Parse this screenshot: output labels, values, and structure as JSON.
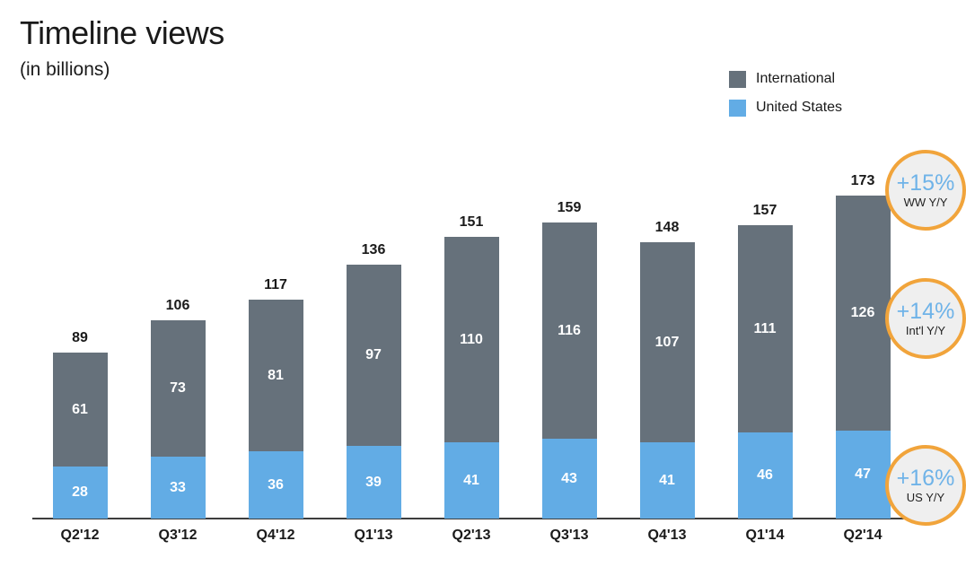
{
  "chart_data": {
    "type": "bar",
    "stacked": true,
    "title": "Timeline views",
    "subtitle": "(in billions)",
    "categories": [
      "Q2'12",
      "Q3'12",
      "Q4'12",
      "Q1'13",
      "Q2'13",
      "Q3'13",
      "Q4'13",
      "Q1'14",
      "Q2'14"
    ],
    "series": [
      {
        "name": "International",
        "color": "#66717b",
        "values": [
          61,
          73,
          81,
          97,
          110,
          116,
          107,
          111,
          126
        ]
      },
      {
        "name": "United States",
        "color": "#62ace5",
        "values": [
          28,
          33,
          36,
          39,
          41,
          43,
          41,
          46,
          47
        ]
      }
    ],
    "totals": [
      89,
      106,
      117,
      136,
      151,
      159,
      148,
      157,
      173
    ],
    "ylim": [
      0,
      173
    ],
    "grid": false,
    "legend_position": "top-right",
    "annotations": [
      {
        "value": "+15%",
        "label": "WW Y/Y"
      },
      {
        "value": "+14%",
        "label": "Int'l Y/Y"
      },
      {
        "value": "+16%",
        "label": "US Y/Y"
      }
    ]
  },
  "colors": {
    "badge_border": "#f1a43b",
    "badge_background": "#efefef",
    "badge_value_text": "#6fb3e8",
    "label_text": "#1a1a1a",
    "bar_value_text": "#ffffff"
  }
}
